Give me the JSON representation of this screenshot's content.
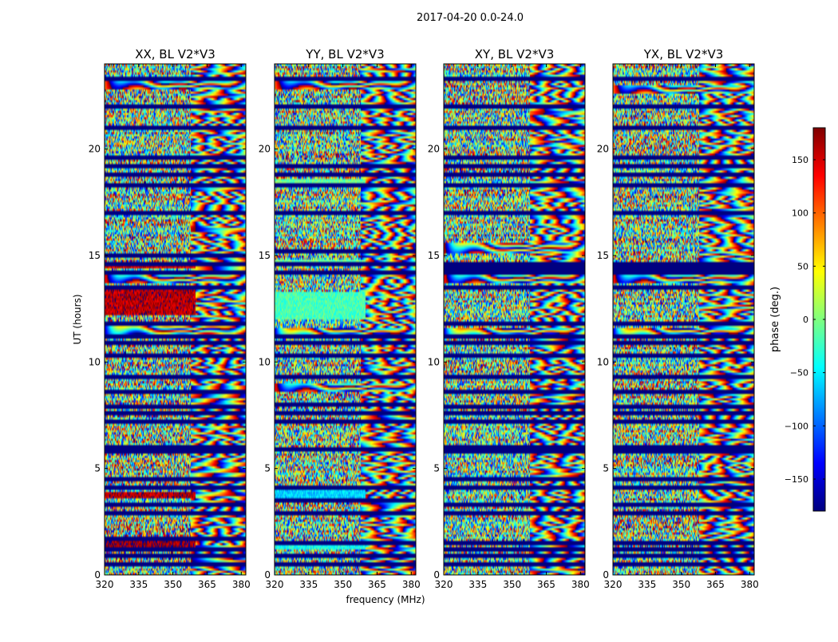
{
  "suptitle": "2017-04-20 0.0-24.0",
  "chart_data": [
    {
      "type": "heatmap",
      "title": "XX, BL V2*V3",
      "xlabel": "",
      "ylabel": "UT (hours)",
      "xlim": [
        320,
        382
      ],
      "ylim": [
        0,
        24
      ],
      "xticks": [
        320,
        335,
        350,
        365,
        380
      ],
      "xtick_labels": [
        "320",
        "335",
        "350",
        "365",
        "380"
      ],
      "yticks": [
        0,
        5,
        10,
        15,
        20
      ],
      "ytick_labels": [
        "0",
        "5",
        "10",
        "15",
        "20"
      ],
      "flagged_rows_hours": [
        0.5,
        0.9,
        1.2,
        1.7,
        2.9,
        3.3,
        4.1,
        4.5,
        5.8,
        6.0,
        7.2,
        7.6,
        7.9,
        8.6,
        9.3,
        10.3,
        10.9,
        11.2,
        11.8,
        13.5,
        14.2,
        14.6,
        15.0,
        17.0,
        18.3,
        18.8,
        19.2,
        19.6,
        21.0,
        22.0,
        23.3
      ],
      "description_bands": [
        {
          "from": 14.4,
          "to": 14.6,
          "phase": 150
        },
        {
          "from": 12.2,
          "to": 13.4,
          "phase": 160
        },
        {
          "from": 3.6,
          "to": 3.9,
          "phase": 160
        },
        {
          "from": 1.3,
          "to": 1.7,
          "phase": 170
        }
      ],
      "fringe_events": [
        {
          "hour": 11.5,
          "phase": -160
        },
        {
          "hour": 13.9,
          "phase": 120
        },
        {
          "hour": 23.0,
          "phase": 90
        }
      ]
    },
    {
      "type": "heatmap",
      "title": "YY, BL V2*V3",
      "xlabel": "frequency (MHz)",
      "ylabel": "",
      "xlim": [
        320,
        382
      ],
      "ylim": [
        0,
        24
      ],
      "xticks": [
        320,
        335,
        350,
        365,
        380
      ],
      "xtick_labels": [
        "320",
        "335",
        "350",
        "365",
        "380"
      ],
      "yticks": [
        0,
        5,
        10,
        15,
        20
      ],
      "ytick_labels": [
        "0",
        "5",
        "10",
        "15",
        "20"
      ],
      "flagged_rows_hours": [
        0.5,
        0.9,
        1.5,
        2.9,
        3.5,
        4.1,
        5.9,
        7.2,
        7.6,
        8.0,
        9.3,
        10.3,
        10.9,
        11.2,
        14.2,
        14.6,
        15.2,
        17.0,
        18.3,
        18.8,
        19.2,
        21.0,
        22.0,
        23.3
      ],
      "description_bands": [
        {
          "from": 14.5,
          "to": 14.8,
          "phase": -10
        },
        {
          "from": 12.0,
          "to": 13.3,
          "phase": -20
        },
        {
          "from": 3.6,
          "to": 4.0,
          "phase": -60
        },
        {
          "from": 1.2,
          "to": 1.6,
          "phase": -40
        },
        {
          "from": 18.3,
          "to": 18.6,
          "phase": -10
        }
      ],
      "fringe_events": [
        {
          "hour": 11.3,
          "phase": -160
        },
        {
          "hour": 8.8,
          "phase": 120
        },
        {
          "hour": 23.0,
          "phase": 90
        }
      ]
    },
    {
      "type": "heatmap",
      "title": "XY, BL V2*V3",
      "xlabel": "",
      "ylabel": "",
      "xlim": [
        320,
        382
      ],
      "ylim": [
        0,
        24
      ],
      "xticks": [
        320,
        335,
        350,
        365,
        380
      ],
      "xtick_labels": [
        "320",
        "335",
        "350",
        "365",
        "380"
      ],
      "yticks": [
        0,
        5,
        10,
        15,
        20
      ],
      "ytick_labels": [
        "0",
        "5",
        "10",
        "15",
        "20"
      ],
      "flagged_rows_hours": [
        0.5,
        0.9,
        1.2,
        1.5,
        2.9,
        3.3,
        4.1,
        4.5,
        5.8,
        6.0,
        7.2,
        7.6,
        7.9,
        8.6,
        9.3,
        10.3,
        10.9,
        11.2,
        11.8,
        13.5,
        14.2,
        14.4,
        14.6,
        17.0,
        18.3,
        18.8,
        19.2,
        19.6,
        21.0,
        22.0,
        23.3
      ],
      "description_bands": [
        {
          "from": 14.2,
          "to": 14.7,
          "phase": -175
        }
      ],
      "fringe_events": [
        {
          "hour": 11.3,
          "phase": -160
        },
        {
          "hour": 13.9,
          "phase": 120
        },
        {
          "hour": 15.3,
          "phase": 150
        }
      ]
    },
    {
      "type": "heatmap",
      "title": "YX, BL V2*V3",
      "xlabel": "",
      "ylabel": "",
      "xlim": [
        320,
        382
      ],
      "ylim": [
        0,
        24
      ],
      "xticks": [
        320,
        335,
        350,
        365,
        380
      ],
      "xtick_labels": [
        "320",
        "335",
        "350",
        "365",
        "380"
      ],
      "yticks": [
        0,
        5,
        10,
        15,
        20
      ],
      "ytick_labels": [
        "0",
        "5",
        "10",
        "15",
        "20"
      ],
      "flagged_rows_hours": [
        0.5,
        0.9,
        1.2,
        1.5,
        2.9,
        3.3,
        4.1,
        4.5,
        5.8,
        6.0,
        7.2,
        7.6,
        7.9,
        8.6,
        9.3,
        10.3,
        10.9,
        11.2,
        11.8,
        13.5,
        14.2,
        14.4,
        14.6,
        17.0,
        18.3,
        18.8,
        19.2,
        19.6,
        21.0,
        22.0,
        23.3
      ],
      "description_bands": [
        {
          "from": 14.2,
          "to": 14.7,
          "phase": -175
        }
      ],
      "fringe_events": [
        {
          "hour": 11.3,
          "phase": -160
        },
        {
          "hour": 13.9,
          "phase": 120
        },
        {
          "hour": 22.8,
          "phase": 90
        }
      ]
    }
  ],
  "colorbar": {
    "label": "phase (deg.)",
    "range": [
      -180,
      180
    ],
    "ticks": [
      -150,
      -100,
      -50,
      0,
      50,
      100,
      150
    ],
    "tick_labels": [
      "−150",
      "−100",
      "−50",
      "0",
      "50",
      "100",
      "150"
    ],
    "colormap": "jet",
    "colormap_stops": [
      "#00007f",
      "#0000ff",
      "#007fff",
      "#00ffff",
      "#7fff7f",
      "#ffff00",
      "#ff7f00",
      "#ff0000",
      "#7f0000"
    ]
  }
}
